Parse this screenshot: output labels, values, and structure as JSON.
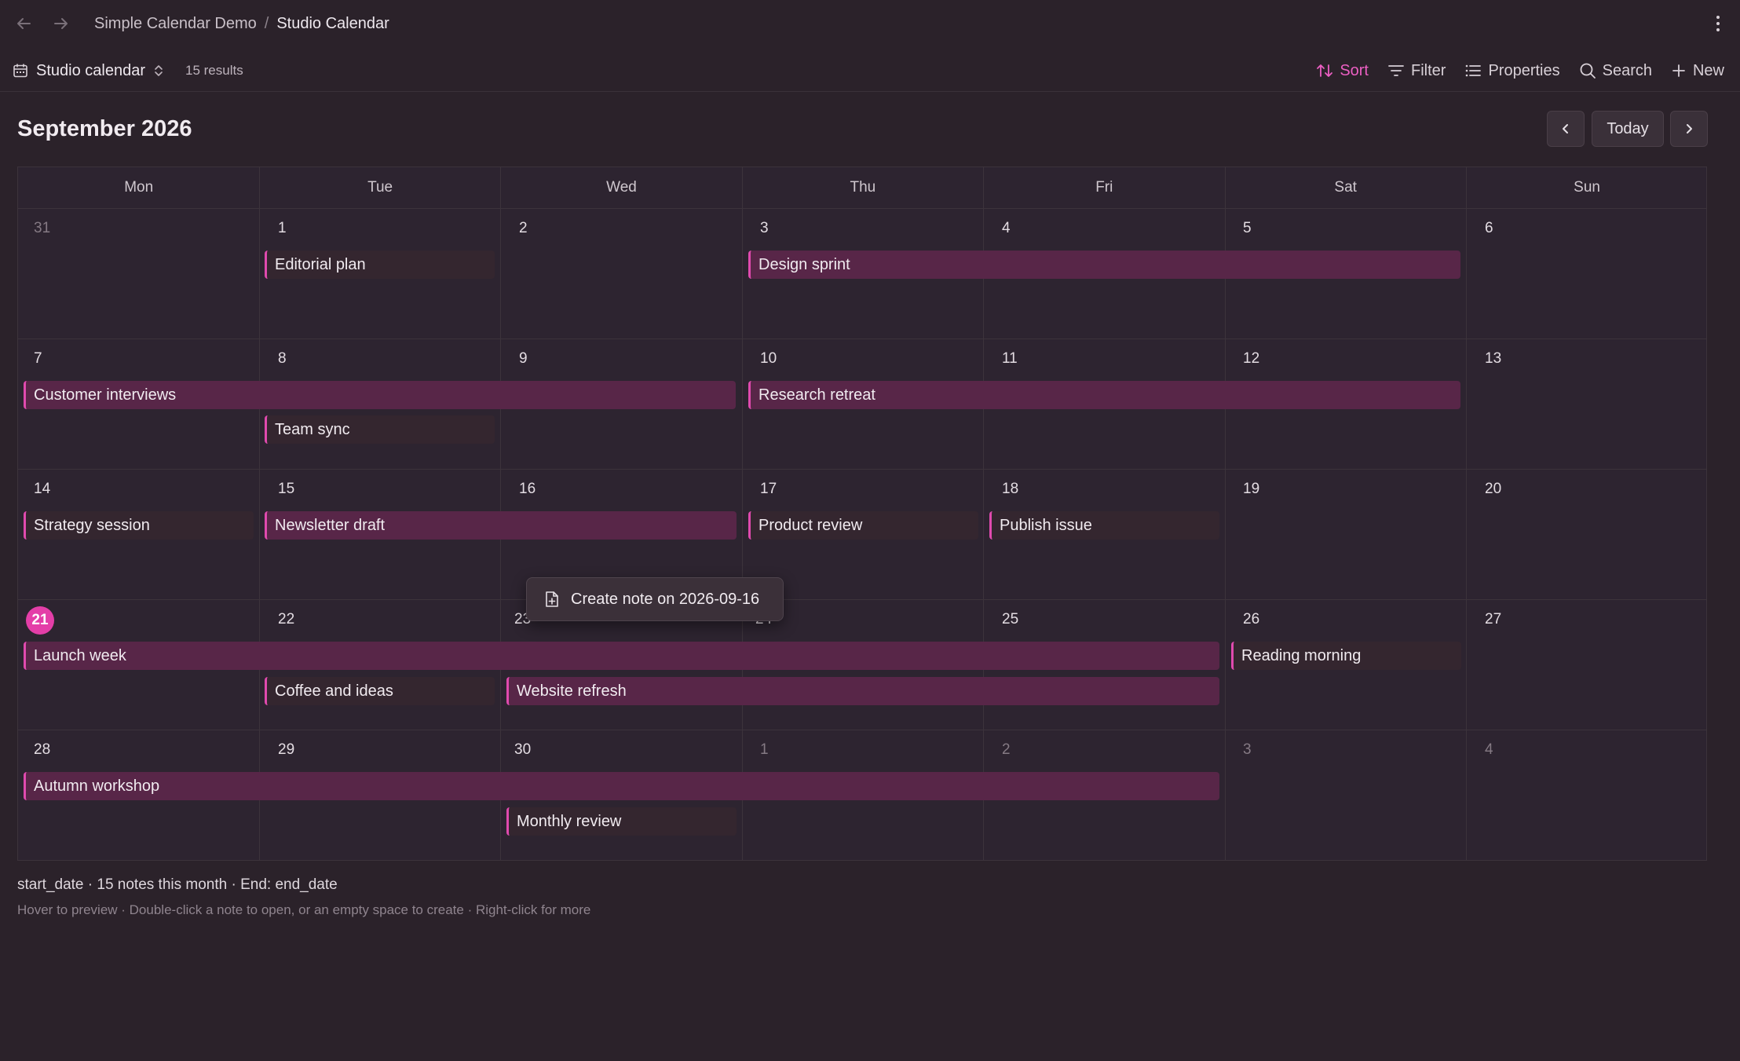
{
  "breadcrumb": {
    "parent": "Simple Calendar Demo",
    "separator": "/",
    "current": "Studio Calendar"
  },
  "toolbar": {
    "view_name": "Studio calendar",
    "results": "15 results",
    "sort_label": "Sort",
    "filter_label": "Filter",
    "properties_label": "Properties",
    "search_label": "Search",
    "new_label": "New"
  },
  "header": {
    "month_title": "September 2026",
    "today_label": "Today"
  },
  "weekdays": [
    "Mon",
    "Tue",
    "Wed",
    "Thu",
    "Fri",
    "Sat",
    "Sun"
  ],
  "weeks": [
    [
      "31",
      "1",
      "2",
      "3",
      "4",
      "5",
      "6"
    ],
    [
      "7",
      "8",
      "9",
      "10",
      "11",
      "12",
      "13"
    ],
    [
      "14",
      "15",
      "16",
      "17",
      "18",
      "19",
      "20"
    ],
    [
      "21",
      "22",
      "23",
      "24",
      "25",
      "26",
      "27"
    ],
    [
      "28",
      "29",
      "30",
      "1",
      "2",
      "3",
      "4"
    ]
  ],
  "events": {
    "editorial_plan": "Editorial plan",
    "design_sprint": "Design sprint",
    "customer_interviews": "Customer interviews",
    "research_retreat": "Research retreat",
    "team_sync": "Team sync",
    "strategy_session": "Strategy session",
    "newsletter_draft": "Newsletter draft",
    "product_review": "Product review",
    "publish_issue": "Publish issue",
    "launch_week": "Launch week",
    "reading_morning": "Reading morning",
    "coffee_and_ideas": "Coffee and ideas",
    "website_refresh": "Website refresh",
    "autumn_workshop": "Autumn workshop",
    "monthly_review": "Monthly review"
  },
  "tooltip": {
    "label": "Create note on 2026-09-16"
  },
  "footer": {
    "summary": "start_date · 15 notes this month · End: end_date",
    "hint": "Hover to preview · Double-click a note to open, or an empty space to create · Right-click for more"
  },
  "colors": {
    "accent": "#e43ea8",
    "event_bar": "#582648",
    "background": "#2b222a"
  },
  "icons": {
    "back": "arrow-left-icon",
    "forward": "arrow-right-icon",
    "more": "more-vertical-icon",
    "calendar": "calendar-icon",
    "sort": "sort-icon",
    "filter": "filter-icon",
    "properties": "list-icon",
    "search": "search-icon",
    "new": "plus-icon",
    "note": "file-plus-icon"
  }
}
